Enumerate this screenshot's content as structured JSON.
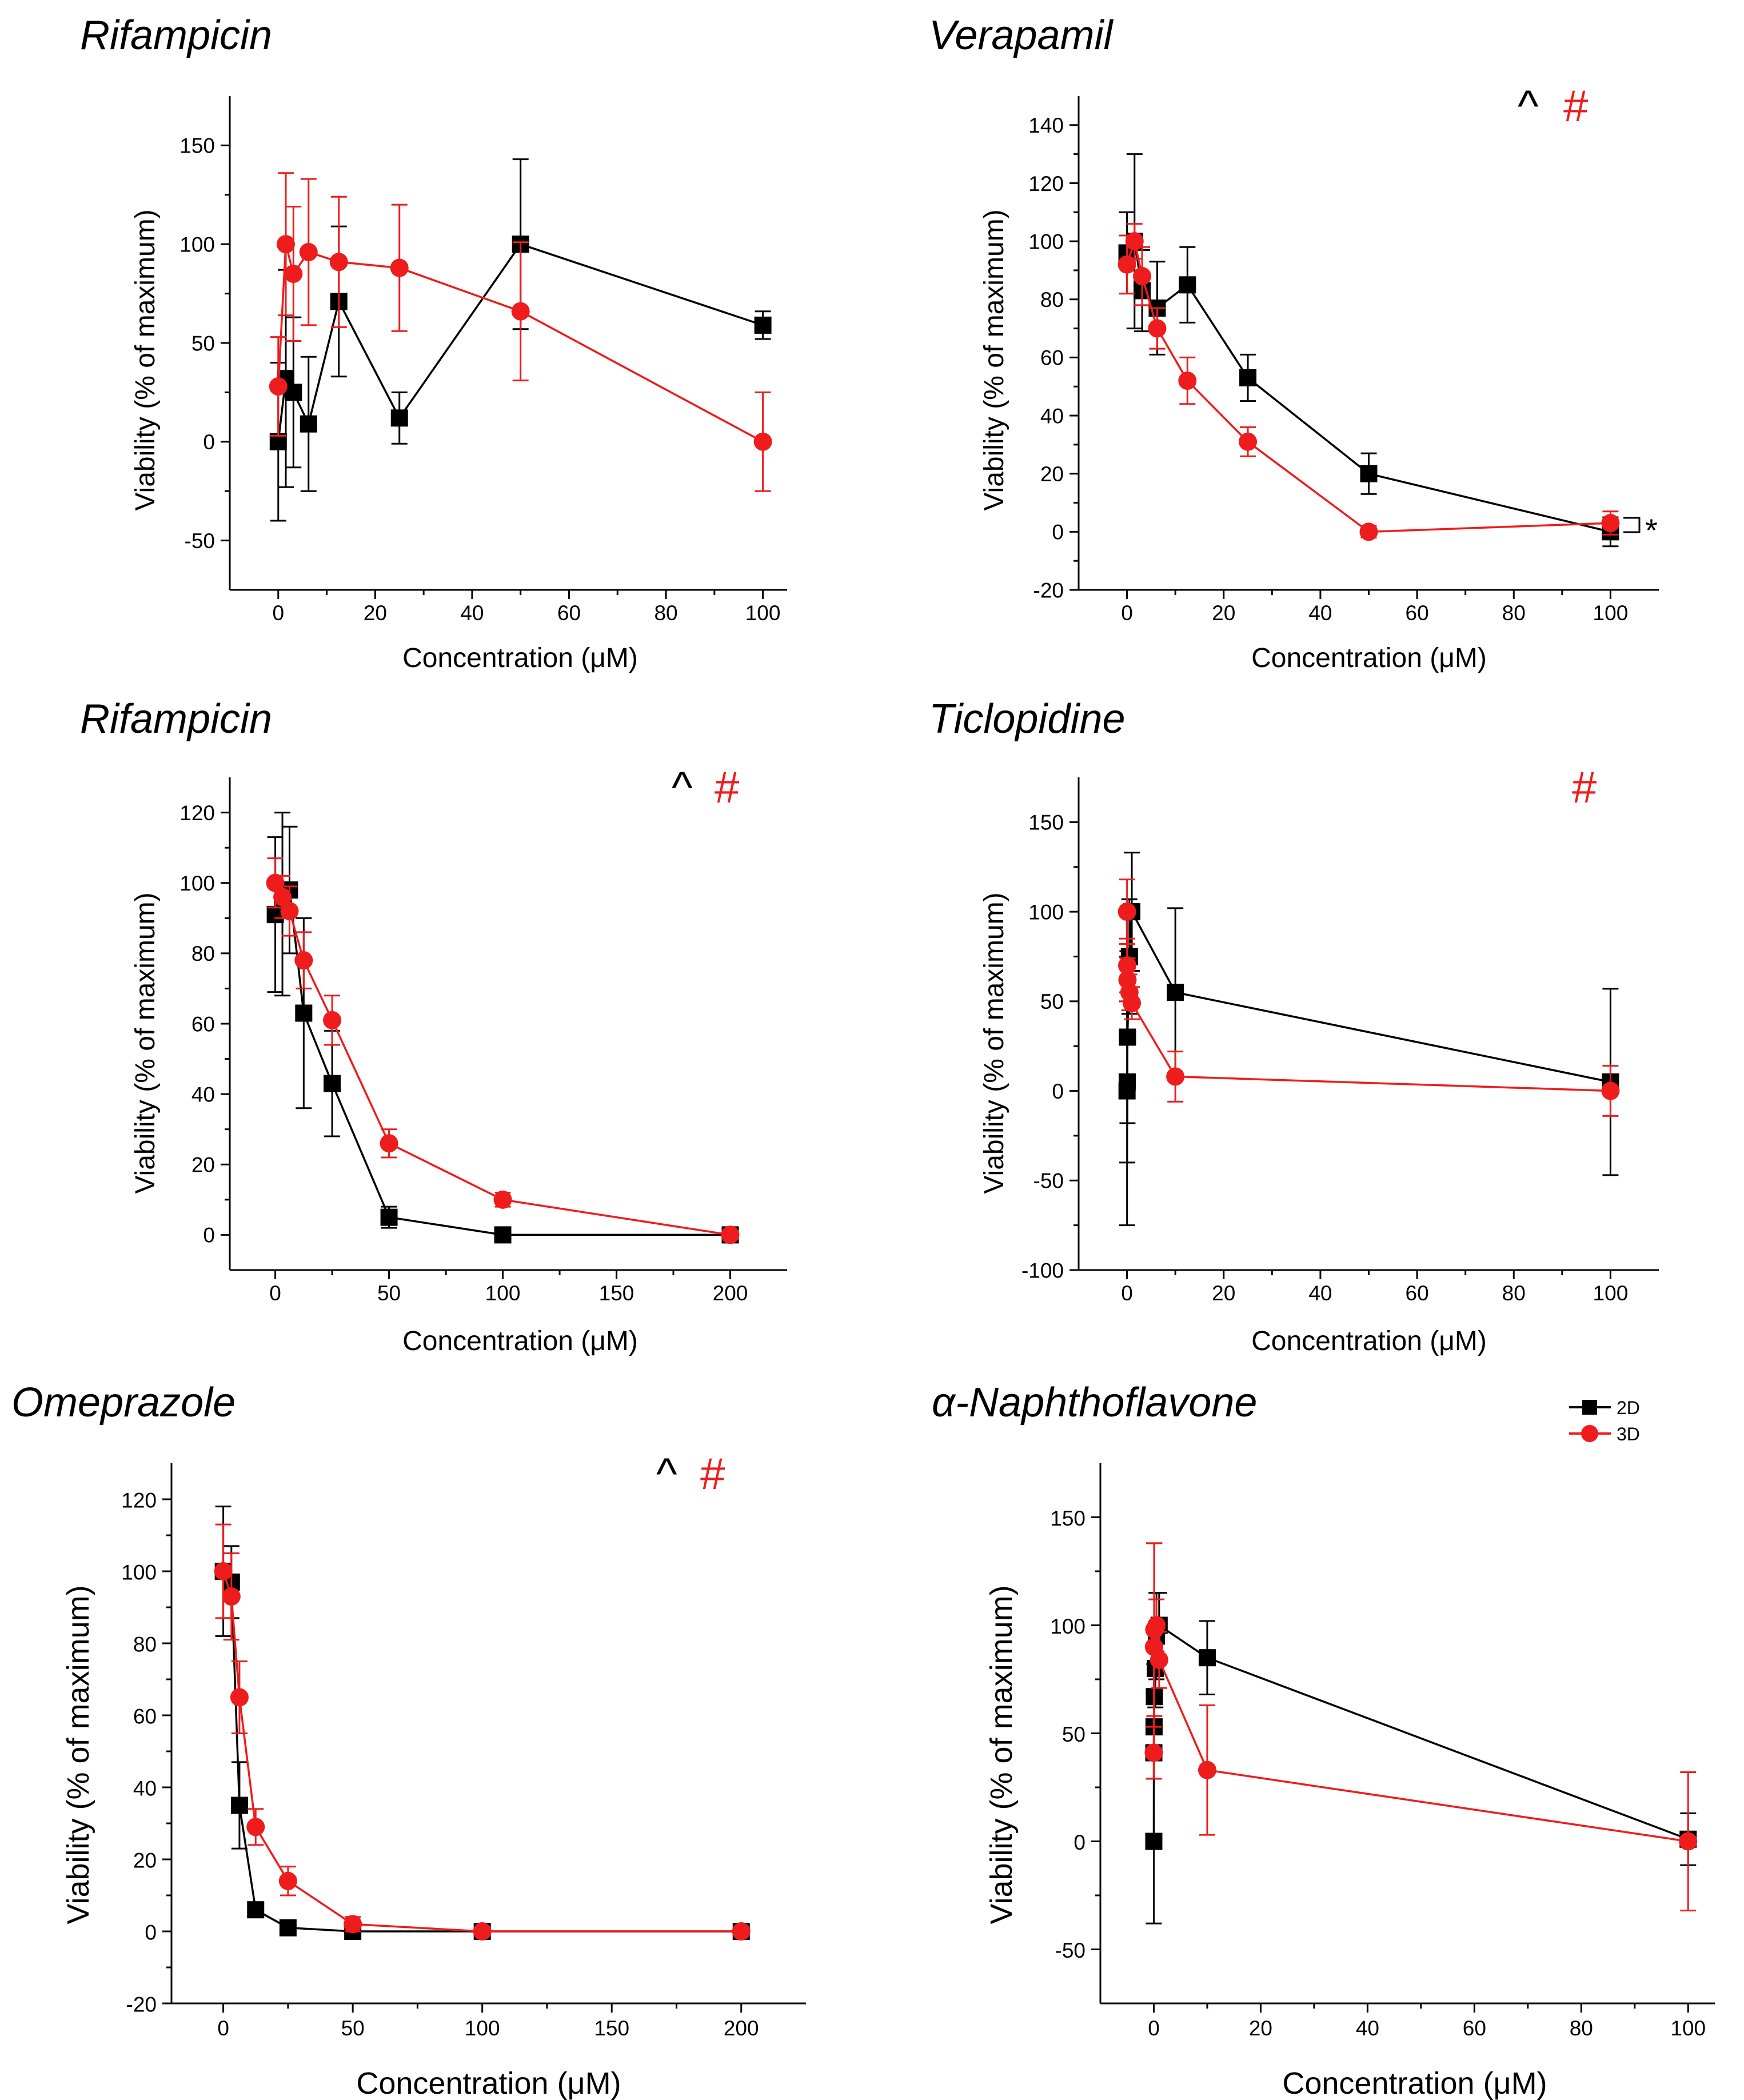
{
  "colors": {
    "series_2d": "#000000",
    "series_3d": "#ee1c1c"
  },
  "legend": {
    "entries": [
      {
        "label": "2D",
        "color": "#000000",
        "marker": "square"
      },
      {
        "label": "3D",
        "color": "#ee1c1c",
        "marker": "circle"
      }
    ]
  },
  "chart_data": [
    {
      "id": "p1",
      "type": "line",
      "title": "Rifampicin",
      "xlabel": "Concentration (μM)",
      "ylabel": "Viability (% of maximum)",
      "xlim": [
        -10,
        105
      ],
      "ylim": [
        -75,
        175
      ],
      "xticks": [
        0,
        20,
        40,
        60,
        80,
        100
      ],
      "yticks": [
        -50,
        0,
        50,
        100,
        150
      ],
      "annotations": [],
      "series": [
        {
          "name": "2D",
          "points": [
            {
              "x": 0,
              "y": 0,
              "err": 40
            },
            {
              "x": 1.56,
              "y": 32,
              "err": 55
            },
            {
              "x": 3.13,
              "y": 25,
              "err": 38
            },
            {
              "x": 6.25,
              "y": 9,
              "err": 34
            },
            {
              "x": 12.5,
              "y": 71,
              "err": 38
            },
            {
              "x": 25,
              "y": 12,
              "err": 13
            },
            {
              "x": 50,
              "y": 100,
              "err": 43
            },
            {
              "x": 100,
              "y": 59,
              "err": 7
            }
          ]
        },
        {
          "name": "3D",
          "points": [
            {
              "x": 0,
              "y": 28,
              "err": 25
            },
            {
              "x": 1.56,
              "y": 100,
              "err": 36
            },
            {
              "x": 3.13,
              "y": 85,
              "err": 34
            },
            {
              "x": 6.25,
              "y": 96,
              "err": 37
            },
            {
              "x": 12.5,
              "y": 91,
              "err": 33
            },
            {
              "x": 25,
              "y": 88,
              "err": 32
            },
            {
              "x": 50,
              "y": 66,
              "err": 35
            },
            {
              "x": 100,
              "y": 0,
              "err": 25
            }
          ]
        }
      ]
    },
    {
      "id": "p2",
      "type": "line",
      "title": "Verapamil",
      "xlabel": "Concentration (μM)",
      "ylabel": "Viability (% of maximum)",
      "xlim": [
        -10,
        110
      ],
      "ylim": [
        -20,
        150
      ],
      "xticks": [
        0,
        20,
        40,
        60,
        80,
        100
      ],
      "yticks": [
        -20,
        0,
        20,
        40,
        60,
        80,
        100,
        120,
        140
      ],
      "annotations": [
        "^",
        "#",
        "*"
      ],
      "series": [
        {
          "name": "2D",
          "points": [
            {
              "x": 0,
              "y": 96,
              "err": 14
            },
            {
              "x": 1.56,
              "y": 100,
              "err": 30
            },
            {
              "x": 3.13,
              "y": 83,
              "err": 14
            },
            {
              "x": 6.25,
              "y": 77,
              "err": 16
            },
            {
              "x": 12.5,
              "y": 85,
              "err": 13
            },
            {
              "x": 25,
              "y": 53,
              "err": 8
            },
            {
              "x": 50,
              "y": 20,
              "err": 7
            },
            {
              "x": 100,
              "y": 0,
              "err": 5
            }
          ]
        },
        {
          "name": "3D",
          "points": [
            {
              "x": 0,
              "y": 92,
              "err": 10
            },
            {
              "x": 1.56,
              "y": 100,
              "err": 6
            },
            {
              "x": 3.13,
              "y": 88,
              "err": 10
            },
            {
              "x": 6.25,
              "y": 70,
              "err": 7
            },
            {
              "x": 12.5,
              "y": 52,
              "err": 8
            },
            {
              "x": 25,
              "y": 31,
              "err": 5
            },
            {
              "x": 50,
              "y": 0,
              "err": 2
            },
            {
              "x": 100,
              "y": 3,
              "err": 4
            }
          ]
        }
      ]
    },
    {
      "id": "p3",
      "type": "line",
      "title": "Rifampicin",
      "xlabel": "Concentration (μM)",
      "ylabel": "Viability (% of maximum)",
      "xlim": [
        -20,
        225
      ],
      "ylim": [
        -10,
        130
      ],
      "xticks": [
        0,
        50,
        100,
        150,
        200
      ],
      "yticks": [
        0,
        20,
        40,
        60,
        80,
        100,
        120
      ],
      "annotations": [
        "^",
        "#"
      ],
      "series": [
        {
          "name": "2D",
          "points": [
            {
              "x": 0,
              "y": 91,
              "err": 22
            },
            {
              "x": 3.13,
              "y": 94,
              "err": 26
            },
            {
              "x": 6.25,
              "y": 98,
              "err": 18
            },
            {
              "x": 12.5,
              "y": 63,
              "err": 27
            },
            {
              "x": 25,
              "y": 43,
              "err": 15
            },
            {
              "x": 50,
              "y": 5,
              "err": 3
            },
            {
              "x": 100,
              "y": 0,
              "err": 1
            },
            {
              "x": 200,
              "y": 0,
              "err": 1
            }
          ]
        },
        {
          "name": "3D",
          "points": [
            {
              "x": 0,
              "y": 100,
              "err": 7
            },
            {
              "x": 3.13,
              "y": 96,
              "err": 6
            },
            {
              "x": 6.25,
              "y": 92,
              "err": 7
            },
            {
              "x": 12.5,
              "y": 78,
              "err": 8
            },
            {
              "x": 25,
              "y": 61,
              "err": 7
            },
            {
              "x": 50,
              "y": 26,
              "err": 4
            },
            {
              "x": 100,
              "y": 10,
              "err": 2
            },
            {
              "x": 200,
              "y": 0,
              "err": 1
            }
          ]
        }
      ]
    },
    {
      "id": "p4",
      "type": "line",
      "title": "Ticlopidine",
      "xlabel": "Concentration (μM)",
      "ylabel": "Viability (% of maximum)",
      "xlim": [
        -10,
        110
      ],
      "ylim": [
        -100,
        175
      ],
      "xticks": [
        0,
        20,
        40,
        60,
        80,
        100
      ],
      "yticks": [
        -100,
        -50,
        0,
        50,
        100,
        150
      ],
      "annotations": [
        "#"
      ],
      "series": [
        {
          "name": "2D",
          "points": [
            {
              "x": 0.01,
              "y": 0,
              "err": 75
            },
            {
              "x": 0.05,
              "y": 5,
              "err": 45
            },
            {
              "x": 0.1,
              "y": 30,
              "err": 48
            },
            {
              "x": 0.5,
              "y": 75,
              "err": 32
            },
            {
              "x": 1,
              "y": 100,
              "err": 33
            },
            {
              "x": 10,
              "y": 55,
              "err": 47
            },
            {
              "x": 100,
              "y": 5,
              "err": 52
            }
          ]
        },
        {
          "name": "3D",
          "points": [
            {
              "x": 0.01,
              "y": 100,
              "err": 18
            },
            {
              "x": 0.05,
              "y": 70,
              "err": 15
            },
            {
              "x": 0.1,
              "y": 62,
              "err": 12
            },
            {
              "x": 0.5,
              "y": 55,
              "err": 10
            },
            {
              "x": 1,
              "y": 49,
              "err": 9
            },
            {
              "x": 10,
              "y": 8,
              "err": 14
            },
            {
              "x": 100,
              "y": 0,
              "err": 14
            }
          ]
        }
      ]
    },
    {
      "id": "p5",
      "type": "line",
      "title": "Omeprazole",
      "xlabel": "Concentration (μM)",
      "ylabel": "Viability (% of maximum)",
      "xlim": [
        -20,
        225
      ],
      "ylim": [
        -20,
        130
      ],
      "xticks": [
        0,
        50,
        100,
        150,
        200
      ],
      "yticks": [
        -20,
        0,
        20,
        40,
        60,
        80,
        100,
        120
      ],
      "annotations": [
        "^",
        "#"
      ],
      "series": [
        {
          "name": "2D",
          "points": [
            {
              "x": 0,
              "y": 100,
              "err": 18
            },
            {
              "x": 3.13,
              "y": 97,
              "err": 10
            },
            {
              "x": 6.25,
              "y": 35,
              "err": 12
            },
            {
              "x": 12.5,
              "y": 6,
              "err": 2
            },
            {
              "x": 25,
              "y": 1,
              "err": 1
            },
            {
              "x": 50,
              "y": 0,
              "err": 1
            },
            {
              "x": 100,
              "y": 0,
              "err": 1
            },
            {
              "x": 200,
              "y": 0,
              "err": 1
            }
          ]
        },
        {
          "name": "3D",
          "points": [
            {
              "x": 0,
              "y": 100,
              "err": 13
            },
            {
              "x": 3.13,
              "y": 93,
              "err": 12
            },
            {
              "x": 6.25,
              "y": 65,
              "err": 10
            },
            {
              "x": 12.5,
              "y": 29,
              "err": 5
            },
            {
              "x": 25,
              "y": 14,
              "err": 4
            },
            {
              "x": 50,
              "y": 2,
              "err": 2
            },
            {
              "x": 100,
              "y": 0,
              "err": 1
            },
            {
              "x": 200,
              "y": 0,
              "err": 1
            }
          ]
        }
      ]
    },
    {
      "id": "p6",
      "type": "line",
      "title": "α-Naphthoflavone",
      "xlabel": "Concentration (μM)",
      "ylabel": "Viability (% of maximum)",
      "xlim": [
        -10,
        105
      ],
      "ylim": [
        -75,
        175
      ],
      "xticks": [
        0,
        20,
        40,
        60,
        80,
        100
      ],
      "yticks": [
        -50,
        0,
        50,
        100,
        150
      ],
      "annotations": [],
      "series": [
        {
          "name": "2D",
          "points": [
            {
              "x": 0,
              "y": 0,
              "err": 38
            },
            {
              "x": 0.01,
              "y": 41,
              "err": 12
            },
            {
              "x": 0.05,
              "y": 53,
              "err": 12
            },
            {
              "x": 0.1,
              "y": 67,
              "err": 15
            },
            {
              "x": 0.3,
              "y": 80,
              "err": 18
            },
            {
              "x": 0.5,
              "y": 95,
              "err": 20
            },
            {
              "x": 1,
              "y": 100,
              "err": 15
            },
            {
              "x": 10,
              "y": 85,
              "err": 17
            },
            {
              "x": 100,
              "y": 1,
              "err": 12
            }
          ]
        },
        {
          "name": "3D",
          "points": [
            {
              "x": 0,
              "y": 41,
              "err": 12
            },
            {
              "x": 0.05,
              "y": 90,
              "err": 48
            },
            {
              "x": 0.1,
              "y": 98,
              "err": 40
            },
            {
              "x": 0.5,
              "y": 100,
              "err": 12
            },
            {
              "x": 1,
              "y": 84,
              "err": 13
            },
            {
              "x": 10,
              "y": 33,
              "err": 30
            },
            {
              "x": 100,
              "y": 0,
              "err": 32
            }
          ]
        }
      ]
    }
  ]
}
